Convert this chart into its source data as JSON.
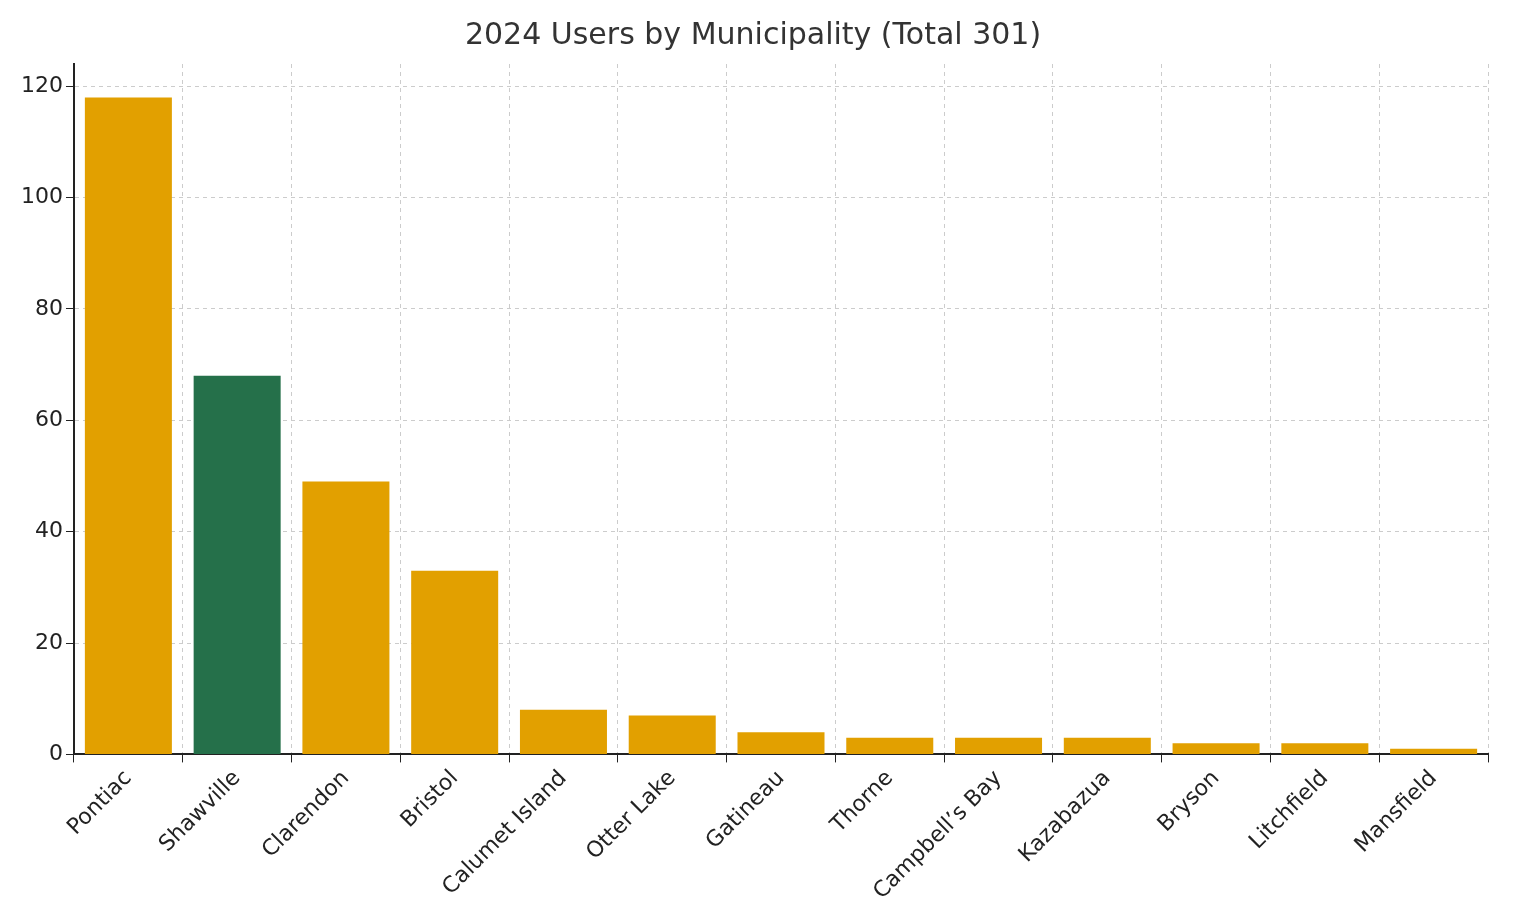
{
  "chart_data": {
    "type": "bar",
    "title": "2024 Users by Municipality (Total 301)",
    "categories": [
      "Pontiac",
      "Shawville",
      "Clarendon",
      "Bristol",
      "Calumet Island",
      "Otter Lake",
      "Gatineau",
      "Thorne",
      "Campbell’s Bay",
      "Kazabazua",
      "Bryson",
      "Litchfield",
      "Mansfield"
    ],
    "values": [
      118,
      68,
      49,
      33,
      8,
      7,
      4,
      3,
      3,
      3,
      2,
      2,
      1
    ],
    "colors": [
      "#e2a000",
      "#25704a",
      "#e2a000",
      "#e2a000",
      "#e2a000",
      "#e2a000",
      "#e2a000",
      "#e2a000",
      "#e2a000",
      "#e2a000",
      "#e2a000",
      "#e2a000",
      "#e2a000"
    ],
    "ylim": [
      0,
      124
    ],
    "yticks": [
      0,
      20,
      40,
      60,
      80,
      100,
      120
    ],
    "grid": true
  }
}
